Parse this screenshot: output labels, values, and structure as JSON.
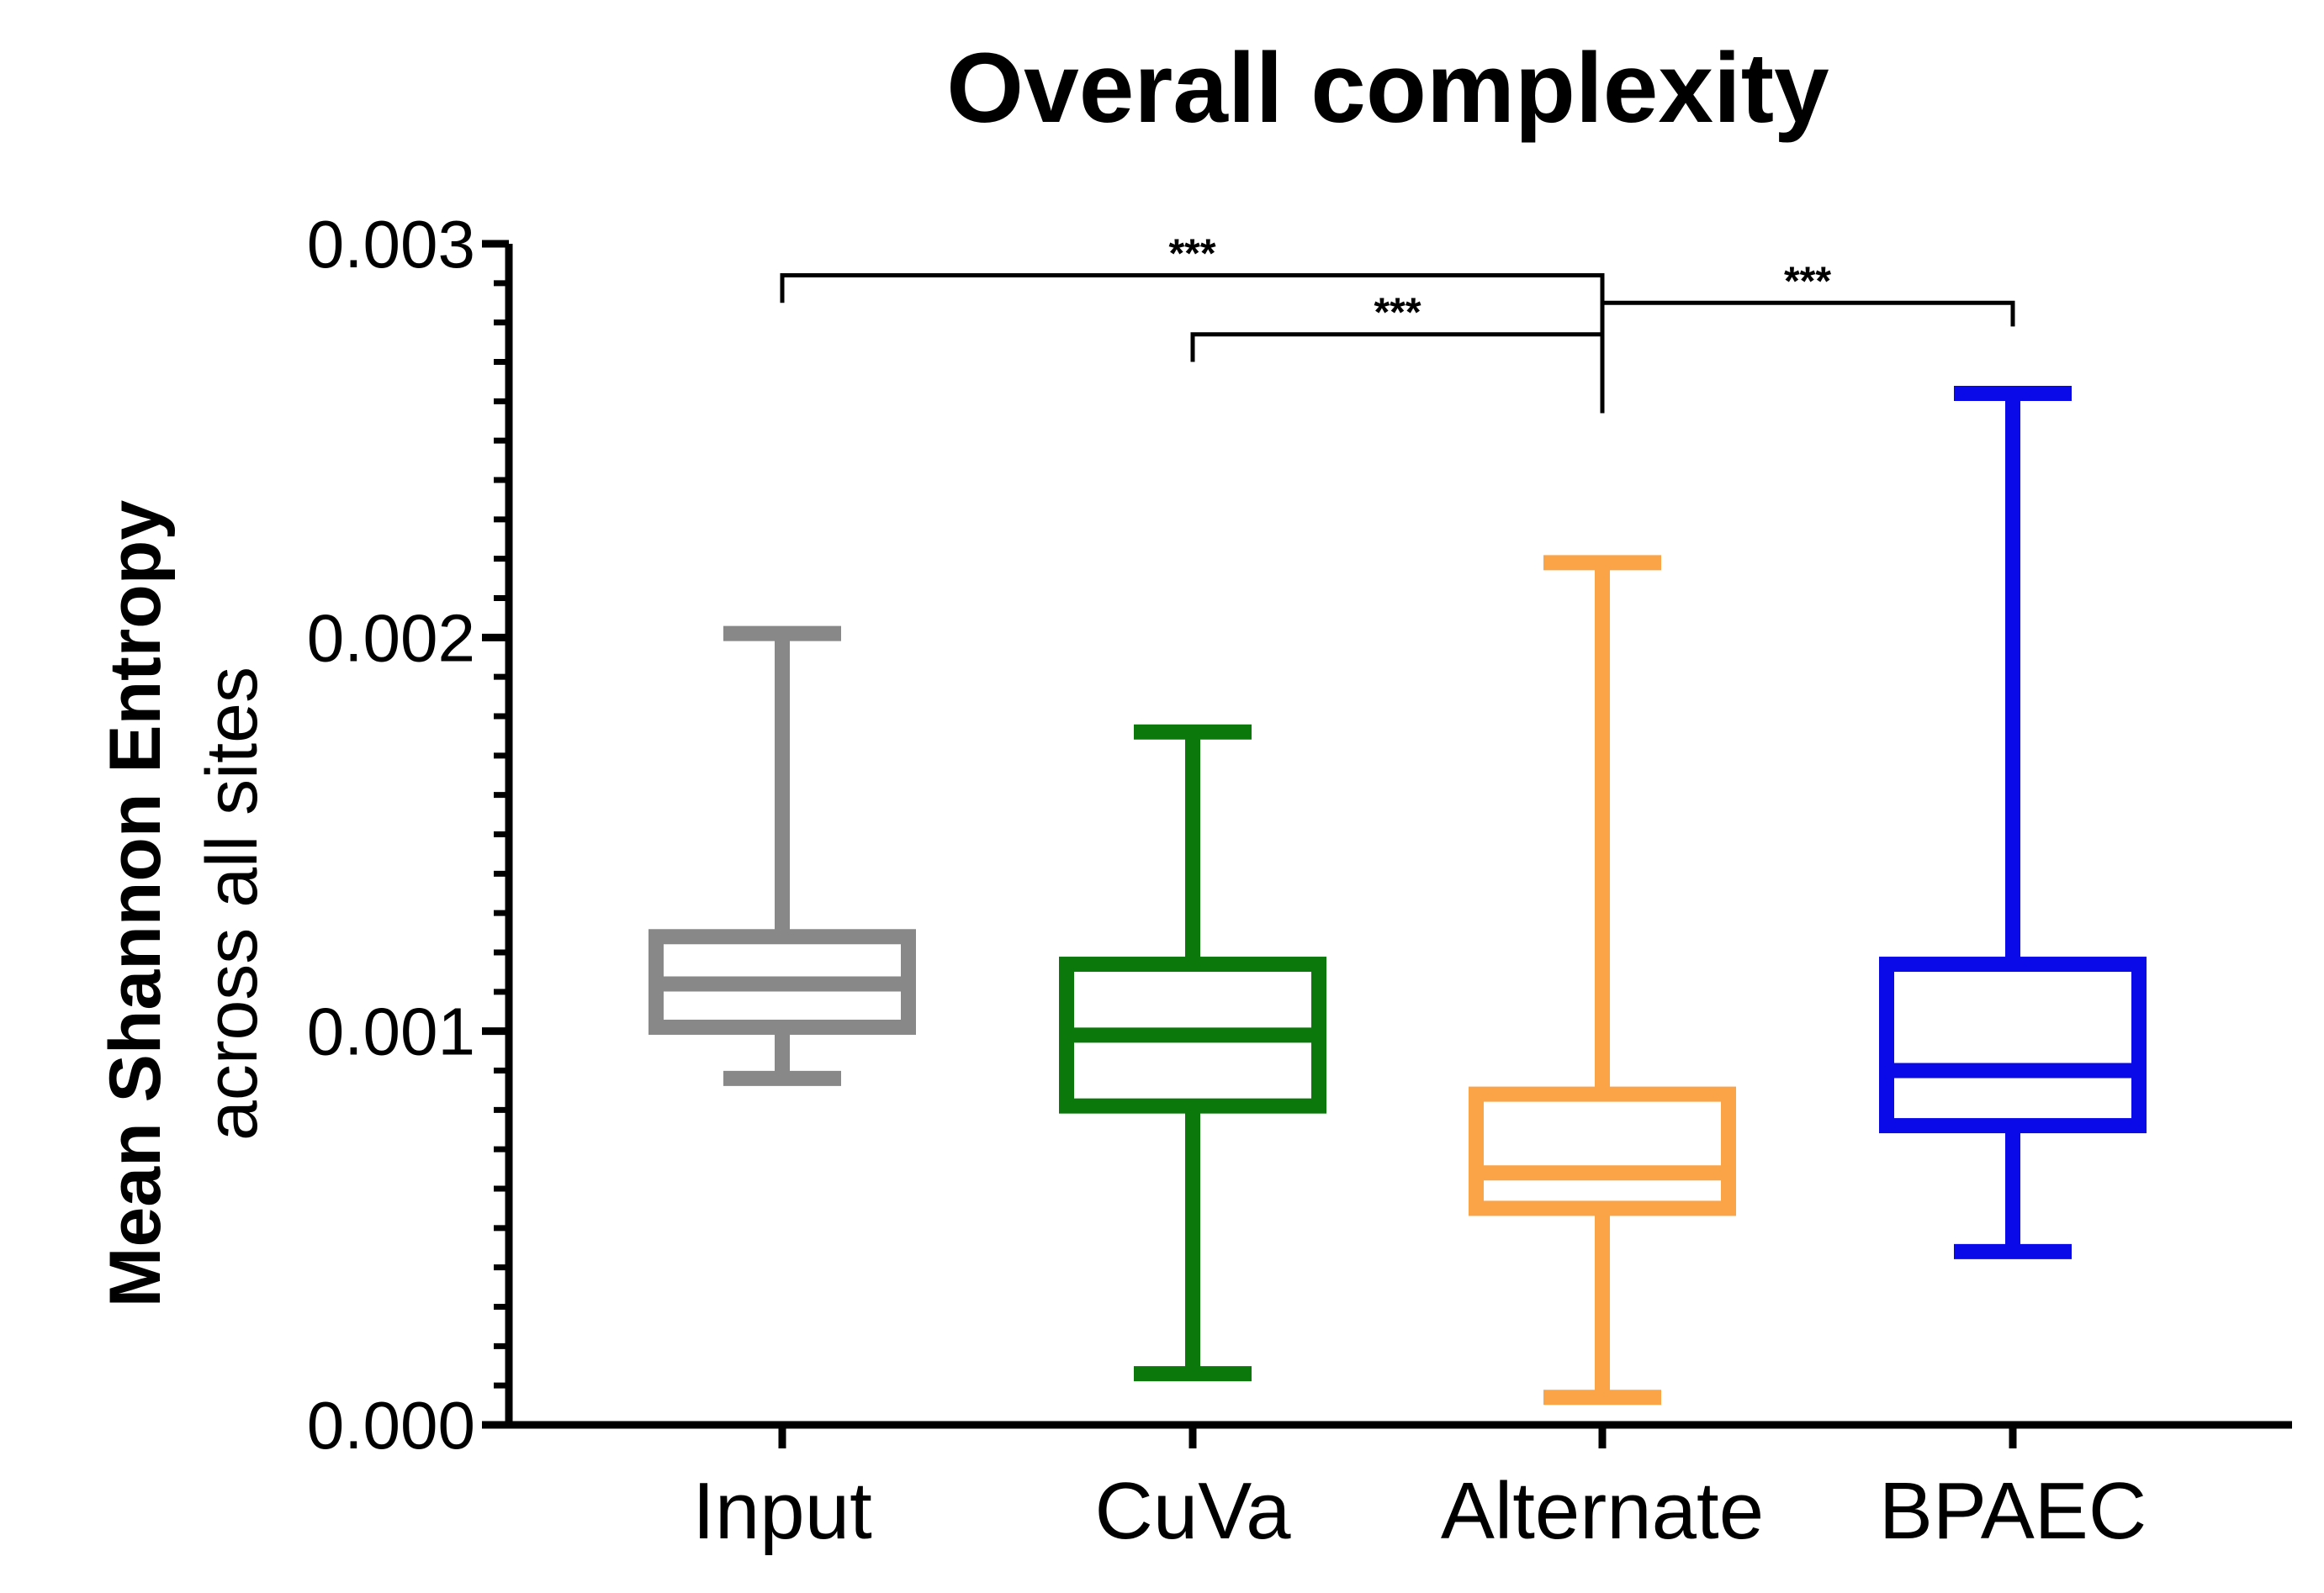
{
  "chart_data": {
    "type": "box",
    "title": "Overall complexity",
    "ylabel_main": "Mean Shannon Entropy",
    "ylabel_sub": "across all sites",
    "xlabel": "",
    "ylim": [
      0,
      0.003
    ],
    "yticks": [
      {
        "value": 0.0,
        "label": "0.000"
      },
      {
        "value": 0.001,
        "label": "0.001"
      },
      {
        "value": 0.002,
        "label": "0.002"
      },
      {
        "value": 0.003,
        "label": "0.003"
      }
    ],
    "minor_tick_step": 0.0001,
    "categories": [
      "Input",
      "CuVa",
      "Alternate",
      "BPAEC"
    ],
    "boxes": [
      {
        "name": "Input",
        "color": "#888888",
        "min": 0.00088,
        "q1": 0.00101,
        "median": 0.00112,
        "q3": 0.00124,
        "max": 0.00201
      },
      {
        "name": "CuVa",
        "color": "#0a780a",
        "min": 0.00013,
        "q1": 0.00081,
        "median": 0.00099,
        "q3": 0.00117,
        "max": 0.00176
      },
      {
        "name": "Alternate",
        "color": "#fba447",
        "min": 7e-05,
        "q1": 0.00055,
        "median": 0.00064,
        "q3": 0.00084,
        "max": 0.00219
      },
      {
        "name": "BPAEC",
        "color": "#0a0ae8",
        "min": 0.00044,
        "q1": 0.00076,
        "median": 0.0009,
        "q3": 0.00117,
        "max": 0.00262
      }
    ],
    "significance": [
      {
        "from": "Input",
        "to": "Alternate",
        "label": "***",
        "level": 0.00292
      },
      {
        "from": "CuVa",
        "to": "Alternate",
        "label": "***",
        "level": 0.00277
      },
      {
        "from": "Alternate",
        "to": "BPAEC",
        "label": "***",
        "level": 0.00285
      }
    ]
  }
}
